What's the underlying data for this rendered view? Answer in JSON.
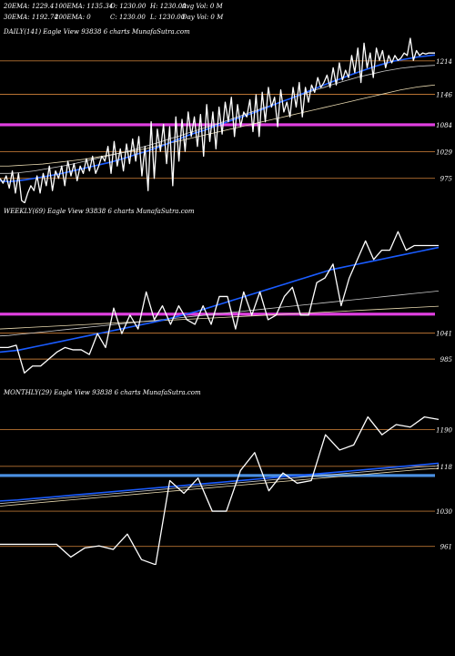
{
  "header": {
    "ema20": "20EMA: 1229.4",
    "ema100": "100EMA: 1135.34",
    "open": "O: 1230.00",
    "high": "H: 1230.00",
    "avgvol": "Avg Vol: 0  M",
    "ema30": "30EMA: 1192.74",
    "ema200": "200EMA: 0",
    "close": "C: 1230.00",
    "low": "L: 1230.00",
    "dayvol": "Day Vol: 0  M"
  },
  "colors": {
    "background": "#000000",
    "price": "#ffffff",
    "ema_short": "#1a5cff",
    "ema_long": "#e8d9b0",
    "ema_mid": "#c8c8c8",
    "level": "#b87333",
    "level_magenta": "#e040e0",
    "level_blue": "#4a90e2"
  },
  "chart_data": [
    {
      "type": "line",
      "title": "DAILY(141) Eagle  View  93838           6  charts MunafaSutra.com",
      "y_ticks": [
        1214,
        1146,
        1084,
        1029,
        975
      ],
      "ylim": [
        930,
        1260
      ],
      "highlight_level": 1084,
      "highlight_color": "magenta",
      "series": [
        {
          "role": "price",
          "values": [
            975,
            965,
            980,
            955,
            990,
            945,
            985,
            930,
            925,
            945,
            960,
            950,
            980,
            945,
            985,
            960,
            1000,
            950,
            990,
            975,
            1000,
            960,
            1010,
            980,
            1005,
            970,
            1000,
            985,
            1015,
            990,
            1020,
            985,
            1000,
            1020,
            1010,
            1040,
            985,
            1050,
            1000,
            1035,
            990,
            1045,
            1005,
            1055,
            1010,
            1060,
            980,
            1040,
            950,
            1090,
            975,
            1075,
            1030,
            1085,
            1005,
            1080,
            960,
            1100,
            1010,
            1095,
            1030,
            1110,
            1060,
            1100,
            1040,
            1105,
            1020,
            1125,
            1050,
            1110,
            1035,
            1120,
            1065,
            1130,
            1090,
            1140,
            1060,
            1125,
            1080,
            1110,
            1100,
            1135,
            1070,
            1145,
            1060,
            1150,
            1090,
            1160,
            1120,
            1140,
            1080,
            1155,
            1110,
            1130,
            1100,
            1160,
            1120,
            1170,
            1100,
            1160,
            1130,
            1165,
            1150,
            1180,
            1160,
            1170,
            1185,
            1160,
            1200,
            1165,
            1210,
            1175,
            1195,
            1180,
            1225,
            1190,
            1240,
            1170,
            1250,
            1200,
            1230,
            1180,
            1240,
            1215,
            1235,
            1200,
            1225,
            1210,
            1225,
            1215,
            1220,
            1230,
            1225,
            1260,
            1215,
            1235,
            1225,
            1230,
            1228,
            1230,
            1230,
            1230
          ]
        },
        {
          "role": "ema_short",
          "values": [
            970,
            968,
            970,
            972,
            975,
            978,
            981,
            984,
            988,
            992,
            996,
            1000,
            1004,
            1008,
            1013,
            1018,
            1024,
            1029,
            1035,
            1041,
            1048,
            1055,
            1062,
            1068,
            1073,
            1080,
            1086,
            1092,
            1098,
            1104,
            1110,
            1117,
            1124,
            1131,
            1137,
            1144,
            1151,
            1158,
            1165,
            1172,
            1178,
            1185,
            1191,
            1197,
            1203,
            1208,
            1213,
            1216,
            1219,
            1222,
            1224,
            1226
          ]
        },
        {
          "role": "ema_mid",
          "values": [
            985,
            985,
            986,
            988,
            990,
            993,
            996,
            999,
            1002,
            1006,
            1010,
            1014,
            1018,
            1022,
            1026,
            1030,
            1035,
            1040,
            1045,
            1050,
            1056,
            1061,
            1067,
            1072,
            1078,
            1083,
            1089,
            1095,
            1101,
            1107,
            1113,
            1119,
            1125,
            1131,
            1137,
            1143,
            1149,
            1155,
            1160,
            1166,
            1171,
            1176,
            1181,
            1185,
            1189,
            1193,
            1196,
            1199,
            1201,
            1203,
            1204,
            1205
          ]
        },
        {
          "role": "ema_long",
          "values": [
            1000,
            1000,
            1001,
            1002,
            1003,
            1004,
            1006,
            1008,
            1010,
            1012,
            1014,
            1017,
            1020,
            1023,
            1026,
            1029,
            1032,
            1035,
            1039,
            1043,
            1047,
            1051,
            1055,
            1059,
            1063,
            1067,
            1071,
            1075,
            1079,
            1083,
            1087,
            1091,
            1095,
            1099,
            1103,
            1107,
            1111,
            1115,
            1119,
            1123,
            1127,
            1131,
            1135,
            1139,
            1143,
            1147,
            1151,
            1155,
            1158,
            1161,
            1163,
            1165
          ]
        }
      ]
    },
    {
      "type": "line",
      "title": "WEEKLY(69) Eagle  View  93838           6  charts MunafaSutra.com",
      "y_ticks": [
        1041,
        985
      ],
      "ylim": [
        940,
        1290
      ],
      "highlight_level": 1082,
      "highlight_color": "magenta",
      "series": [
        {
          "role": "price",
          "values": [
            1010,
            1010,
            1015,
            955,
            970,
            970,
            985,
            1000,
            1010,
            1005,
            1005,
            995,
            1040,
            1010,
            1095,
            1040,
            1080,
            1050,
            1130,
            1070,
            1100,
            1060,
            1100,
            1070,
            1060,
            1100,
            1060,
            1120,
            1120,
            1050,
            1130,
            1080,
            1130,
            1070,
            1080,
            1120,
            1140,
            1080,
            1080,
            1150,
            1160,
            1190,
            1100,
            1160,
            1200,
            1240,
            1200,
            1220,
            1220,
            1260,
            1220,
            1230,
            1230,
            1230,
            1230
          ]
        },
        {
          "role": "ema_short",
          "values": [
            1000,
            1002,
            1004,
            1008,
            1012,
            1016,
            1020,
            1024,
            1028,
            1032,
            1036,
            1040,
            1044,
            1048,
            1052,
            1056,
            1060,
            1064,
            1068,
            1073,
            1078,
            1083,
            1088,
            1094,
            1100,
            1106,
            1112,
            1118,
            1124,
            1130,
            1136,
            1142,
            1148,
            1154,
            1160,
            1166,
            1172,
            1178,
            1182,
            1186,
            1190,
            1194,
            1198,
            1202,
            1206,
            1210,
            1214,
            1218,
            1222,
            1226
          ]
        },
        {
          "role": "ema_mid",
          "values": [
            1035,
            1036,
            1038,
            1040,
            1042,
            1044,
            1046,
            1048,
            1050,
            1052,
            1054,
            1056,
            1058,
            1060,
            1062,
            1064,
            1066,
            1068,
            1070,
            1072,
            1074,
            1076,
            1078,
            1080,
            1082,
            1084,
            1086,
            1088,
            1090,
            1092,
            1094,
            1096,
            1098,
            1100,
            1102,
            1104,
            1106,
            1108,
            1110,
            1112,
            1114,
            1116,
            1118,
            1120,
            1122,
            1124,
            1126,
            1128,
            1130,
            1132
          ]
        },
        {
          "role": "ema_long",
          "values": [
            1050,
            1051,
            1052,
            1053,
            1054,
            1055,
            1056,
            1057,
            1058,
            1059,
            1060,
            1061,
            1062,
            1063,
            1064,
            1065,
            1066,
            1067,
            1068,
            1069,
            1070,
            1071,
            1072,
            1073,
            1074,
            1075,
            1076,
            1077,
            1078,
            1079,
            1080,
            1081,
            1082,
            1083,
            1084,
            1085,
            1086,
            1087,
            1088,
            1089,
            1090,
            1091,
            1092,
            1093,
            1094,
            1095,
            1096,
            1097,
            1098,
            1099
          ]
        }
      ]
    },
    {
      "type": "line",
      "title": "MONTHLY(29) Eagle  View  93838           6  charts MunafaSutra.com",
      "y_ticks": [
        1190,
        1118,
        1030,
        961
      ],
      "ylim": [
        930,
        1250
      ],
      "highlight_level": 1100,
      "highlight_color": "blue",
      "series": [
        {
          "role": "price",
          "values": [
            965,
            965,
            965,
            965,
            965,
            940,
            958,
            962,
            955,
            985,
            935,
            925,
            1090,
            1065,
            1095,
            1030,
            1030,
            1110,
            1145,
            1070,
            1105,
            1085,
            1090,
            1180,
            1150,
            1160,
            1215,
            1180,
            1200,
            1195,
            1215,
            1210
          ]
        },
        {
          "role": "ema_short",
          "values": [
            1050,
            1052,
            1055,
            1058,
            1061,
            1064,
            1067,
            1070,
            1073,
            1076,
            1079,
            1082,
            1085,
            1088,
            1091,
            1094,
            1097,
            1100,
            1103,
            1106,
            1109,
            1112,
            1115,
            1118,
            1121,
            1124
          ]
        },
        {
          "role": "ema_mid",
          "values": [
            1045,
            1048,
            1051,
            1054,
            1057,
            1060,
            1063,
            1066,
            1069,
            1072,
            1075,
            1078,
            1081,
            1084,
            1087,
            1090,
            1093,
            1096,
            1099,
            1102,
            1105,
            1108,
            1111,
            1114,
            1117,
            1119
          ]
        },
        {
          "role": "ema_long",
          "values": [
            1040,
            1043,
            1046,
            1049,
            1052,
            1055,
            1058,
            1061,
            1064,
            1067,
            1070,
            1073,
            1076,
            1079,
            1082,
            1085,
            1088,
            1091,
            1094,
            1097,
            1100,
            1103,
            1106,
            1109,
            1112,
            1114
          ]
        }
      ]
    }
  ]
}
